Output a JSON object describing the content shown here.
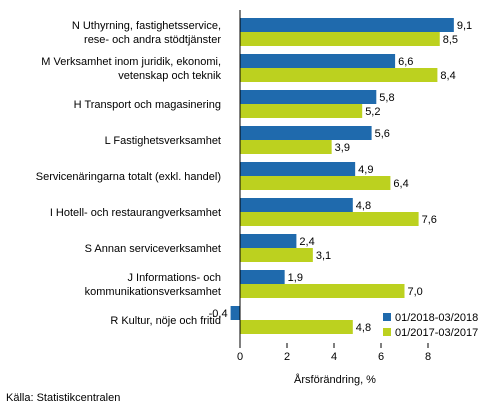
{
  "chart_data": {
    "type": "bar",
    "orientation": "horizontal",
    "categories": [
      [
        "N Uthyrning, fastighetsservice,",
        "rese- och andra stödtjänster"
      ],
      [
        "M Verksamhet inom juridik, ekonomi,",
        "vetenskap och teknik"
      ],
      [
        "H Transport och magasinering"
      ],
      [
        "L Fastighetsverksamhet"
      ],
      [
        "Servicenäringarna totalt (exkl. handel)"
      ],
      [
        "I Hotell- och restaurangverksamhet"
      ],
      [
        "S Annan serviceverksamhet"
      ],
      [
        "J Informations- och",
        "kommunikationsverksamhet"
      ],
      [
        "R Kultur, nöje och fritid"
      ]
    ],
    "series": [
      {
        "name": "01/2018-03/2018",
        "color": "#1f6aad",
        "values": [
          9.1,
          6.6,
          5.8,
          5.6,
          4.9,
          4.8,
          2.4,
          1.9,
          -0.4
        ],
        "labels": [
          "9,1",
          "6,6",
          "5,8",
          "5,6",
          "4,9",
          "4,8",
          "2,4",
          "1,9",
          "-0,4"
        ]
      },
      {
        "name": "01/2017-03/2017",
        "color": "#bcd11f",
        "values": [
          8.5,
          8.4,
          5.2,
          3.9,
          6.4,
          7.6,
          3.1,
          7.0,
          4.8
        ],
        "labels": [
          "8,5",
          "8,4",
          "5,2",
          "3,9",
          "6,4",
          "7,6",
          "3,1",
          "7,0",
          "4,8"
        ]
      }
    ],
    "xlim": [
      -1.5,
      10.5
    ],
    "xticks": [
      0,
      2,
      4,
      6,
      8
    ],
    "xticklabels": [
      "0",
      "2",
      "4",
      "6",
      "8"
    ],
    "xlabel": "Årsförändring, %",
    "legend_position": "bottom-right",
    "grid": false
  },
  "source": "Källa: Statistikcentralen"
}
